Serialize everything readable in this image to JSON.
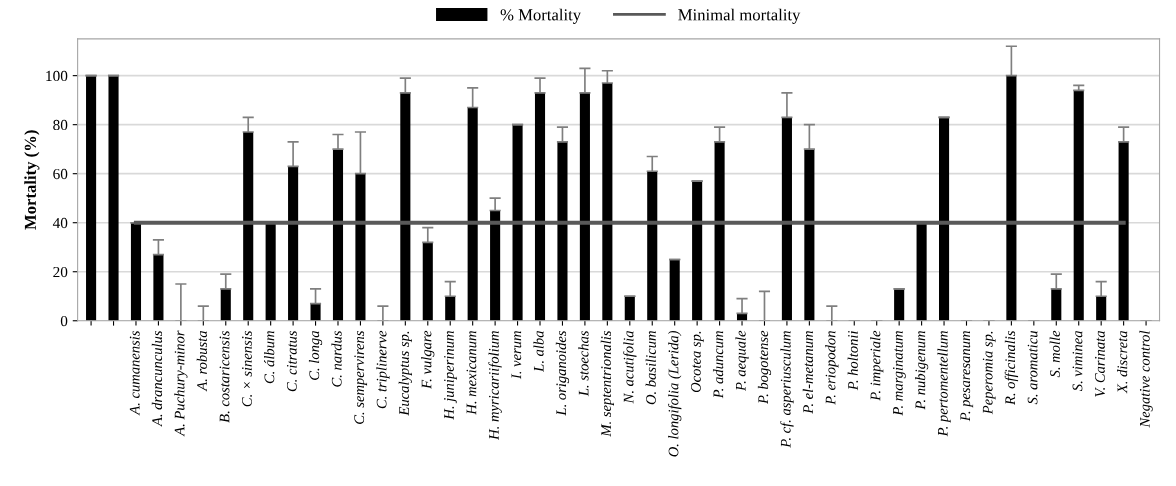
{
  "chart_data": {
    "type": "bar",
    "ylabel": "Mortality (%)",
    "categories": [
      null,
      null,
      "A. cumanensis",
      "A. drancunculus",
      "A. Puchury-minor",
      "A. robusta",
      "B. costaricensis",
      "C. × sinensis",
      "C. álbum",
      "C. citratus",
      "C. longa",
      "C. nardus",
      "C. sempervirens",
      "C. triplinerve",
      "Eucalyptus sp.",
      "F. vulgare",
      "H. juniperinum",
      "H. mexicanum",
      "H. myricariifolium",
      "I. verum",
      "L. alba",
      "L. origanoides",
      "L. stoechas",
      "M. septentrionalis",
      "N. acutifolia",
      "O. basilicum",
      "O. longifolia (Lerida)",
      "Ocotea sp.",
      "P. aduncum",
      "P. aequale",
      "P. bogotense",
      "P. cf. asperiusculum",
      "P. el-metanum",
      "P. eriopodon",
      "P. holtonii",
      "P. imperiale",
      "P. marginatum",
      "P. nubigenum",
      "P. pertomentellum",
      "P. pesaresanum",
      "Peperomia sp.",
      "R. officinalis",
      "S. aromaticu",
      "S. molle",
      "S. viminea",
      "V. Carinata",
      "X. discreta",
      "Negative control"
    ],
    "series": [
      {
        "name": "% Mortality",
        "color": "#000000",
        "values": [
          100,
          100,
          40,
          27,
          0,
          0,
          13,
          77,
          40,
          63,
          7,
          70,
          60,
          0,
          93,
          32,
          10,
          87,
          45,
          80,
          93,
          73,
          93,
          97,
          10,
          61,
          25,
          57,
          73,
          3,
          0,
          83,
          70,
          0,
          0,
          0,
          13,
          40,
          83,
          0,
          0,
          100,
          0,
          13,
          94,
          10,
          73,
          0
        ],
        "errors": [
          0,
          0,
          0,
          6,
          15,
          6,
          6,
          6,
          0,
          10,
          6,
          6,
          17,
          6,
          6,
          6,
          6,
          8,
          5,
          0,
          6,
          6,
          10,
          5,
          0,
          6,
          0,
          0,
          6,
          6,
          12,
          10,
          10,
          6,
          0,
          0,
          0,
          0,
          0,
          0,
          0,
          12,
          0,
          6,
          2,
          6,
          6,
          0
        ]
      },
      {
        "name": "Minimal mortality",
        "type": "line",
        "color": "#595959",
        "values": [
          null,
          null,
          40,
          40,
          40,
          40,
          40,
          40,
          40,
          40,
          40,
          40,
          40,
          40,
          40,
          40,
          40,
          40,
          40,
          40,
          40,
          40,
          40,
          40,
          40,
          40,
          40,
          40,
          40,
          40,
          40,
          40,
          40,
          40,
          40,
          40,
          40,
          40,
          40,
          40,
          40,
          40,
          40,
          40,
          40,
          40,
          40,
          null
        ]
      }
    ],
    "ylim": [
      0,
      115
    ],
    "yticks": [
      0,
      20,
      40,
      60,
      80,
      100
    ],
    "grid": "y",
    "legend": "top"
  }
}
